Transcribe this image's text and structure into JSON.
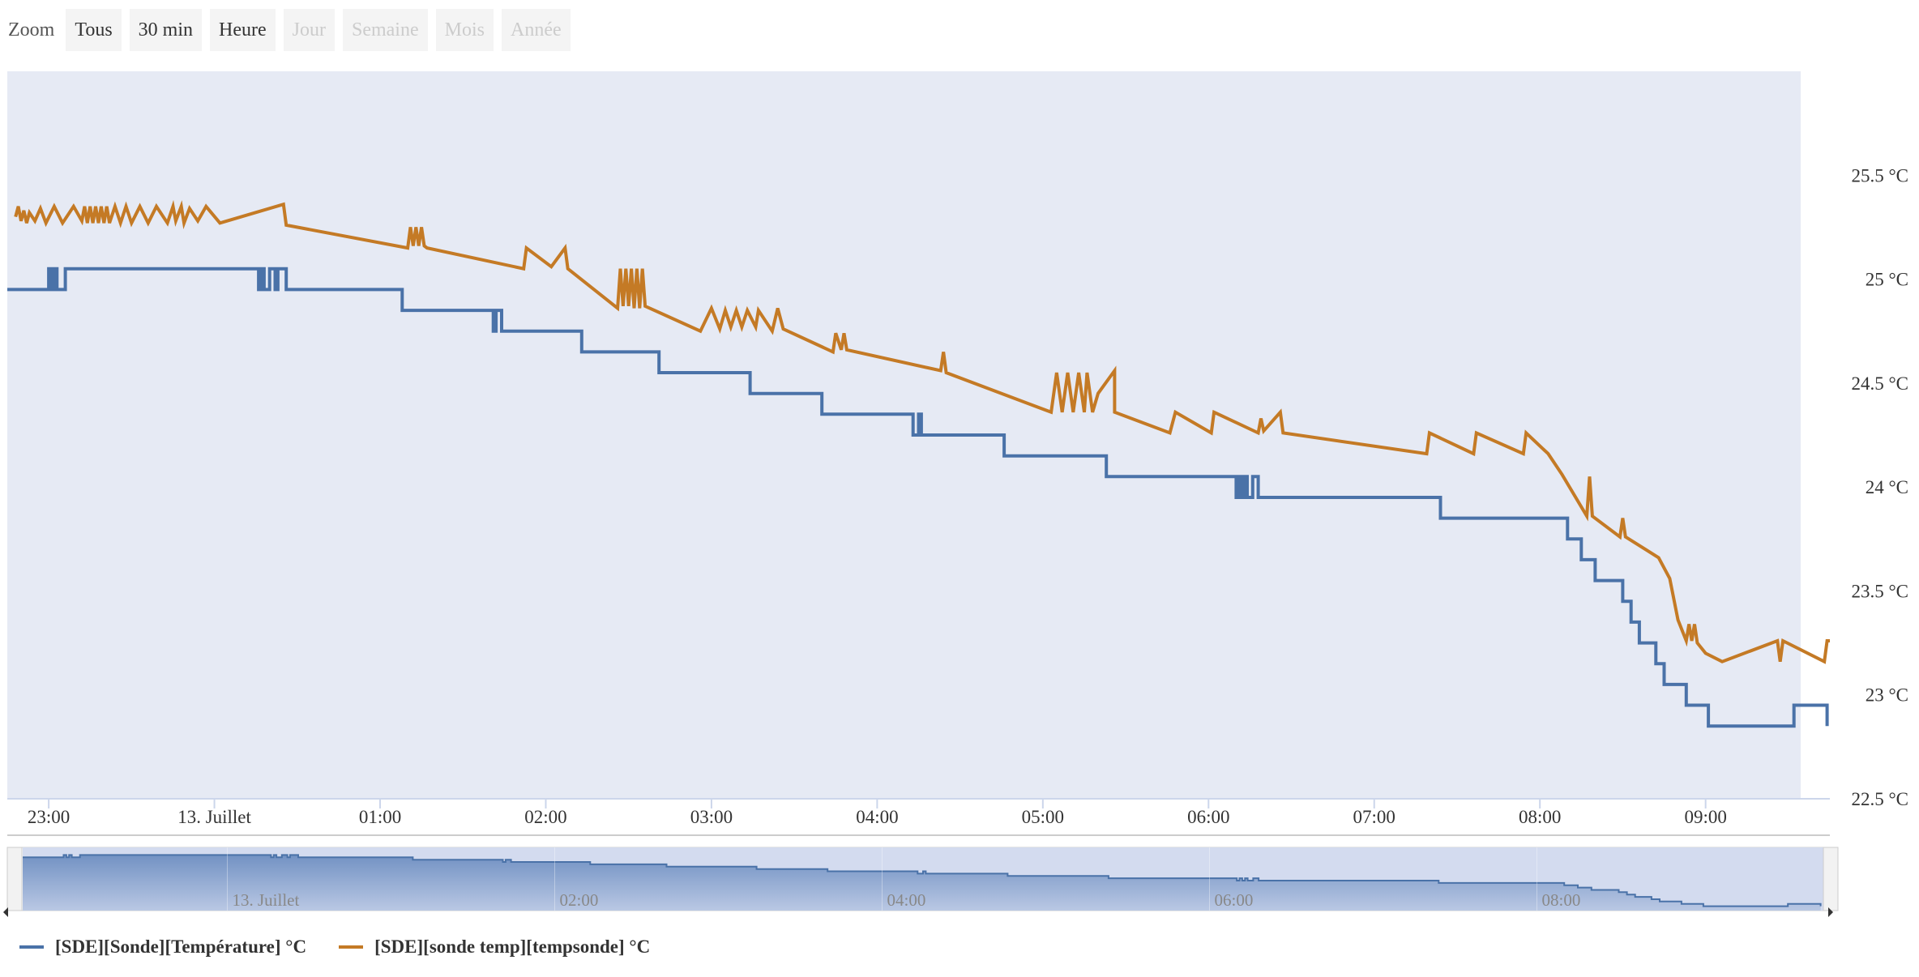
{
  "zoom": {
    "label": "Zoom",
    "buttons": [
      {
        "label": "Tous",
        "enabled": true
      },
      {
        "label": "30 min",
        "enabled": true
      },
      {
        "label": "Heure",
        "enabled": true
      },
      {
        "label": "Jour",
        "enabled": false
      },
      {
        "label": "Semaine",
        "enabled": false
      },
      {
        "label": "Mois",
        "enabled": false
      },
      {
        "label": "Année",
        "enabled": false
      }
    ]
  },
  "colors": {
    "plot_background": "#e6eaf4",
    "series_1": "#4a72a8",
    "series_2": "#c47a25",
    "navigator_background": "#d3dbef",
    "navigator_fill": "#6d8ec1"
  },
  "chart_data": {
    "type": "line",
    "title": "",
    "xlabel": "",
    "ylabel": "",
    "x_range": [
      "22:45",
      "09:45"
    ],
    "ylim": [
      22.5,
      26.0
    ],
    "y_ticks": [
      {
        "value": 22.5,
        "label": "22.5 °C"
      },
      {
        "value": 23.0,
        "label": "23 °C"
      },
      {
        "value": 23.5,
        "label": "23.5 °C"
      },
      {
        "value": 24.0,
        "label": "24 °C"
      },
      {
        "value": 24.5,
        "label": "24.5 °C"
      },
      {
        "value": 25.0,
        "label": "25 °C"
      },
      {
        "value": 25.5,
        "label": "25.5 °C"
      }
    ],
    "x_ticks": [
      {
        "time": "23:00",
        "label": "23:00"
      },
      {
        "time": "00:00",
        "label": "13. Juillet"
      },
      {
        "time": "01:00",
        "label": "01:00"
      },
      {
        "time": "02:00",
        "label": "02:00"
      },
      {
        "time": "03:00",
        "label": "03:00"
      },
      {
        "time": "04:00",
        "label": "04:00"
      },
      {
        "time": "05:00",
        "label": "05:00"
      },
      {
        "time": "06:00",
        "label": "06:00"
      },
      {
        "time": "07:00",
        "label": "07:00"
      },
      {
        "time": "08:00",
        "label": "08:00"
      },
      {
        "time": "09:00",
        "label": "09:00"
      }
    ],
    "navigator_ticks": [
      {
        "time": "00:00",
        "label": "13. Juillet"
      },
      {
        "time": "02:00",
        "label": "02:00"
      },
      {
        "time": "04:00",
        "label": "04:00"
      },
      {
        "time": "06:00",
        "label": "06:00"
      },
      {
        "time": "08:00",
        "label": "08:00"
      }
    ],
    "grid": false,
    "legend_position": "bottom-left",
    "series": [
      {
        "name": "[SDE][Sonde][Température] °C",
        "step": true,
        "points": [
          [
            "22:45",
            24.95
          ],
          [
            "22:58",
            24.95
          ],
          [
            "23:00",
            25.05
          ],
          [
            "23:01",
            24.95
          ],
          [
            "23:02",
            25.05
          ],
          [
            "23:03",
            24.95
          ],
          [
            "23:05",
            24.95
          ],
          [
            "23:06",
            25.05
          ],
          [
            "00:15",
            25.05
          ],
          [
            "00:16",
            24.95
          ],
          [
            "00:17",
            25.05
          ],
          [
            "00:18",
            24.95
          ],
          [
            "00:20",
            25.05
          ],
          [
            "00:22",
            24.95
          ],
          [
            "00:23",
            25.05
          ],
          [
            "00:25",
            25.05
          ],
          [
            "00:26",
            24.95
          ],
          [
            "01:07",
            24.95
          ],
          [
            "01:08",
            24.85
          ],
          [
            "01:40",
            24.85
          ],
          [
            "01:41",
            24.75
          ],
          [
            "01:42",
            24.85
          ],
          [
            "01:44",
            24.75
          ],
          [
            "02:12",
            24.75
          ],
          [
            "02:13",
            24.65
          ],
          [
            "02:40",
            24.65
          ],
          [
            "02:41",
            24.55
          ],
          [
            "03:13",
            24.55
          ],
          [
            "03:14",
            24.45
          ],
          [
            "03:39",
            24.45
          ],
          [
            "03:40",
            24.35
          ],
          [
            "04:12",
            24.35
          ],
          [
            "04:13",
            24.25
          ],
          [
            "04:15",
            24.35
          ],
          [
            "04:16",
            24.25
          ],
          [
            "04:45",
            24.25
          ],
          [
            "04:46",
            24.15
          ],
          [
            "05:22",
            24.15
          ],
          [
            "05:23",
            24.05
          ],
          [
            "06:09",
            24.05
          ],
          [
            "06:10",
            23.95
          ],
          [
            "06:11",
            24.05
          ],
          [
            "06:12",
            23.95
          ],
          [
            "06:13",
            24.05
          ],
          [
            "06:14",
            23.95
          ],
          [
            "06:16",
            24.05
          ],
          [
            "06:18",
            23.95
          ],
          [
            "07:23",
            23.95
          ],
          [
            "07:24",
            23.85
          ],
          [
            "08:09",
            23.85
          ],
          [
            "08:10",
            23.75
          ],
          [
            "08:15",
            23.65
          ],
          [
            "08:20",
            23.55
          ],
          [
            "08:30",
            23.45
          ],
          [
            "08:33",
            23.35
          ],
          [
            "08:36",
            23.25
          ],
          [
            "08:42",
            23.15
          ],
          [
            "08:45",
            23.05
          ],
          [
            "08:53",
            22.95
          ],
          [
            "09:01",
            22.85
          ],
          [
            "09:31",
            22.85
          ],
          [
            "09:32",
            22.95
          ],
          [
            "09:43",
            22.95
          ],
          [
            "09:44",
            22.85
          ]
        ]
      },
      {
        "name": "[SDE][sonde temp][tempsonde] °C",
        "step": false,
        "points": [
          [
            "22:48",
            25.3
          ],
          [
            "22:49",
            25.35
          ],
          [
            "22:50",
            25.28
          ],
          [
            "22:51",
            25.33
          ],
          [
            "22:52",
            25.27
          ],
          [
            "22:53",
            25.32
          ],
          [
            "22:55",
            25.28
          ],
          [
            "22:57",
            25.34
          ],
          [
            "22:59",
            25.27
          ],
          [
            "23:02",
            25.35
          ],
          [
            "23:05",
            25.27
          ],
          [
            "23:09",
            25.35
          ],
          [
            "23:12",
            25.28
          ],
          [
            "23:13",
            25.35
          ],
          [
            "23:14",
            25.27
          ],
          [
            "23:15",
            25.35
          ],
          [
            "23:16",
            25.27
          ],
          [
            "23:17",
            25.35
          ],
          [
            "23:18",
            25.27
          ],
          [
            "23:19",
            25.35
          ],
          [
            "23:20",
            25.27
          ],
          [
            "23:21",
            25.35
          ],
          [
            "23:22",
            25.27
          ],
          [
            "23:24",
            25.35
          ],
          [
            "23:26",
            25.27
          ],
          [
            "23:28",
            25.35
          ],
          [
            "23:30",
            25.27
          ],
          [
            "23:33",
            25.35
          ],
          [
            "23:36",
            25.27
          ],
          [
            "23:39",
            25.35
          ],
          [
            "23:43",
            25.27
          ],
          [
            "23:45",
            25.35
          ],
          [
            "23:46",
            25.28
          ],
          [
            "23:48",
            25.35
          ],
          [
            "23:49",
            25.27
          ],
          [
            "23:51",
            25.34
          ],
          [
            "23:54",
            25.28
          ],
          [
            "23:57",
            25.35
          ],
          [
            "00:02",
            25.27
          ],
          [
            "00:25",
            25.36
          ],
          [
            "00:26",
            25.26
          ],
          [
            "01:10",
            25.15
          ],
          [
            "01:11",
            25.25
          ],
          [
            "01:12",
            25.16
          ],
          [
            "01:13",
            25.25
          ],
          [
            "01:14",
            25.16
          ],
          [
            "01:15",
            25.25
          ],
          [
            "01:16",
            25.16
          ],
          [
            "01:17",
            25.15
          ],
          [
            "01:52",
            25.05
          ],
          [
            "01:53",
            25.15
          ],
          [
            "02:02",
            25.06
          ],
          [
            "02:07",
            25.15
          ],
          [
            "02:08",
            25.05
          ],
          [
            "02:26",
            24.86
          ],
          [
            "02:27",
            25.05
          ],
          [
            "02:28",
            24.87
          ],
          [
            "02:29",
            25.05
          ],
          [
            "02:30",
            24.87
          ],
          [
            "02:31",
            25.05
          ],
          [
            "02:32",
            24.86
          ],
          [
            "02:33",
            25.05
          ],
          [
            "02:34",
            24.86
          ],
          [
            "02:35",
            25.05
          ],
          [
            "02:36",
            24.87
          ],
          [
            "02:56",
            24.75
          ],
          [
            "03:00",
            24.86
          ],
          [
            "03:03",
            24.76
          ],
          [
            "03:05",
            24.85
          ],
          [
            "03:07",
            24.77
          ],
          [
            "03:09",
            24.85
          ],
          [
            "03:11",
            24.77
          ],
          [
            "03:13",
            24.85
          ],
          [
            "03:16",
            24.77
          ],
          [
            "03:17",
            24.85
          ],
          [
            "03:22",
            24.75
          ],
          [
            "03:24",
            24.86
          ],
          [
            "03:26",
            24.76
          ],
          [
            "03:44",
            24.65
          ],
          [
            "03:45",
            24.74
          ],
          [
            "03:47",
            24.66
          ],
          [
            "03:48",
            24.74
          ],
          [
            "03:49",
            24.66
          ],
          [
            "04:23",
            24.56
          ],
          [
            "04:24",
            24.65
          ],
          [
            "04:25",
            24.55
          ],
          [
            "05:03",
            24.36
          ],
          [
            "05:05",
            24.55
          ],
          [
            "05:07",
            24.36
          ],
          [
            "05:09",
            24.55
          ],
          [
            "05:11",
            24.36
          ],
          [
            "05:13",
            24.55
          ],
          [
            "05:15",
            24.36
          ],
          [
            "05:16",
            24.55
          ],
          [
            "05:18",
            24.36
          ],
          [
            "05:20",
            24.45
          ],
          [
            "05:26",
            24.56
          ],
          [
            "05:26",
            24.36
          ],
          [
            "05:46",
            24.26
          ],
          [
            "05:48",
            24.36
          ],
          [
            "06:01",
            24.26
          ],
          [
            "06:02",
            24.36
          ],
          [
            "06:18",
            24.26
          ],
          [
            "06:19",
            24.33
          ],
          [
            "06:20",
            24.27
          ],
          [
            "06:26",
            24.36
          ],
          [
            "06:27",
            24.26
          ],
          [
            "07:19",
            24.16
          ],
          [
            "07:20",
            24.26
          ],
          [
            "07:36",
            24.16
          ],
          [
            "07:37",
            24.26
          ],
          [
            "07:54",
            24.16
          ],
          [
            "07:55",
            24.26
          ],
          [
            "08:03",
            24.16
          ],
          [
            "08:08",
            24.06
          ],
          [
            "08:17",
            23.86
          ],
          [
            "08:18",
            24.05
          ],
          [
            "08:19",
            23.86
          ],
          [
            "08:29",
            23.76
          ],
          [
            "08:30",
            23.85
          ],
          [
            "08:31",
            23.76
          ],
          [
            "08:43",
            23.66
          ],
          [
            "08:47",
            23.56
          ],
          [
            "08:50",
            23.36
          ],
          [
            "08:53",
            23.26
          ],
          [
            "08:54",
            23.34
          ],
          [
            "08:55",
            23.26
          ],
          [
            "08:56",
            23.34
          ],
          [
            "08:57",
            23.25
          ],
          [
            "09:00",
            23.2
          ],
          [
            "09:06",
            23.16
          ],
          [
            "09:26",
            23.26
          ],
          [
            "09:27",
            23.16
          ],
          [
            "09:28",
            23.26
          ],
          [
            "09:43",
            23.16
          ],
          [
            "09:44",
            23.26
          ],
          [
            "09:45",
            23.26
          ]
        ]
      }
    ]
  }
}
